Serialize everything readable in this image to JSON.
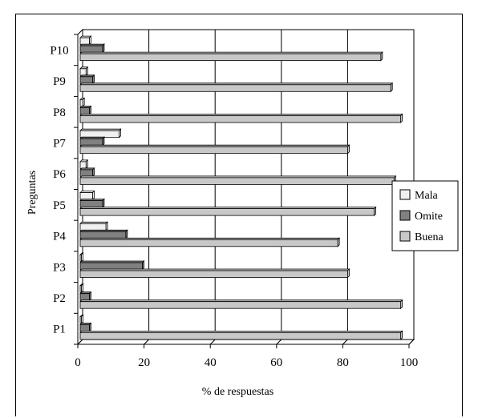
{
  "chart_data": {
    "type": "bar",
    "orientation": "horizontal",
    "categories": [
      "P1",
      "P2",
      "P3",
      "P4",
      "P5",
      "P6",
      "P7",
      "P8",
      "P9",
      "P10"
    ],
    "series": [
      {
        "name": "Mala",
        "color": "#f0f0f0",
        "values": [
          0.5,
          0.5,
          0.5,
          8,
          4,
          2,
          12,
          1,
          2,
          3
        ]
      },
      {
        "name": "Omite",
        "color": "#808080",
        "values": [
          3,
          3,
          19,
          14,
          7,
          4,
          7,
          3,
          4,
          7
        ]
      },
      {
        "name": "Buena",
        "color": "#c8c8c8",
        "values": [
          97,
          97,
          81,
          78,
          89,
          95,
          81,
          97,
          94,
          91
        ]
      }
    ],
    "x_ticks": [
      "0",
      "20",
      "40",
      "60",
      "80",
      "100"
    ],
    "xlim": [
      0,
      100
    ],
    "xlabel": "% de respuestas",
    "ylabel": "Preguntas",
    "grid": "vertical",
    "legend_position": "right",
    "style": "3d"
  }
}
